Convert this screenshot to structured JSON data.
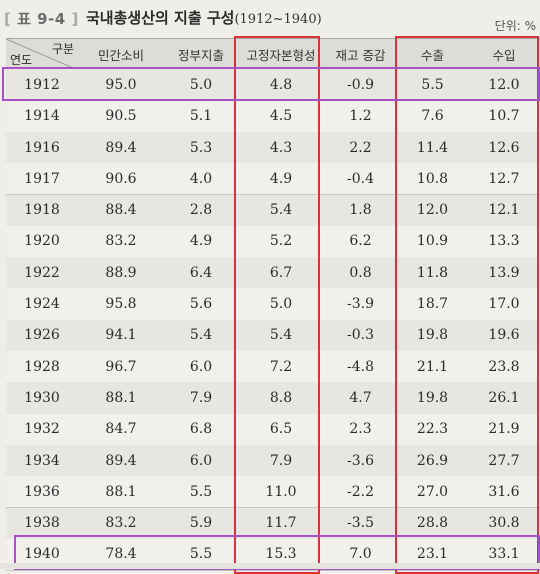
{
  "title": {
    "label": "표 9-4",
    "text": "국내총생산의 지출 구성",
    "years": "(1912~1940)"
  },
  "unit_label": "단위: %",
  "header": {
    "corner_top": "구분",
    "corner_bottom": "연도",
    "columns": [
      "민간소비",
      "정부지출",
      "고정자본형성",
      "재고 증감",
      "수출",
      "수입"
    ]
  },
  "rows": [
    {
      "year": "1912",
      "values": [
        "95.0",
        "5.0",
        "4.8",
        "-0.9",
        "5.5",
        "12.0"
      ]
    },
    {
      "year": "1914",
      "values": [
        "90.5",
        "5.1",
        "4.5",
        "1.2",
        "7.6",
        "10.7"
      ]
    },
    {
      "year": "1916",
      "values": [
        "89.4",
        "5.3",
        "4.3",
        "2.2",
        "11.4",
        "12.6"
      ]
    },
    {
      "year": "1917",
      "values": [
        "90.6",
        "4.0",
        "4.9",
        "-0.4",
        "10.8",
        "12.7"
      ]
    },
    {
      "year": "1918",
      "values": [
        "88.4",
        "2.8",
        "5.4",
        "1.8",
        "12.0",
        "12.1"
      ]
    },
    {
      "year": "1920",
      "values": [
        "83.2",
        "4.9",
        "5.2",
        "6.2",
        "10.9",
        "13.3"
      ]
    },
    {
      "year": "1922",
      "values": [
        "88.9",
        "6.4",
        "6.7",
        "0.8",
        "11.8",
        "13.9"
      ]
    },
    {
      "year": "1924",
      "values": [
        "95.8",
        "5.6",
        "5.0",
        "-3.9",
        "18.7",
        "17.0"
      ]
    },
    {
      "year": "1926",
      "values": [
        "94.1",
        "5.4",
        "5.4",
        "-0.3",
        "19.8",
        "19.6"
      ]
    },
    {
      "year": "1928",
      "values": [
        "96.7",
        "6.0",
        "7.2",
        "-4.8",
        "21.1",
        "23.8"
      ]
    },
    {
      "year": "1930",
      "values": [
        "88.1",
        "7.9",
        "8.8",
        "4.7",
        "19.8",
        "26.1"
      ]
    },
    {
      "year": "1932",
      "values": [
        "84.7",
        "6.8",
        "6.5",
        "2.3",
        "22.3",
        "21.9"
      ]
    },
    {
      "year": "1934",
      "values": [
        "89.4",
        "6.0",
        "7.9",
        "-3.6",
        "26.9",
        "27.7"
      ]
    },
    {
      "year": "1936",
      "values": [
        "88.1",
        "5.5",
        "11.0",
        "-2.2",
        "27.0",
        "31.6"
      ]
    },
    {
      "year": "1938",
      "values": [
        "83.2",
        "5.9",
        "11.7",
        "-3.5",
        "28.8",
        "30.8"
      ]
    },
    {
      "year": "1940",
      "values": [
        "78.4",
        "5.5",
        "15.3",
        "7.0",
        "23.1",
        "33.1"
      ]
    }
  ],
  "highlight_colors": {
    "column_box": "#d8323c",
    "row_box": "#a553c4"
  }
}
